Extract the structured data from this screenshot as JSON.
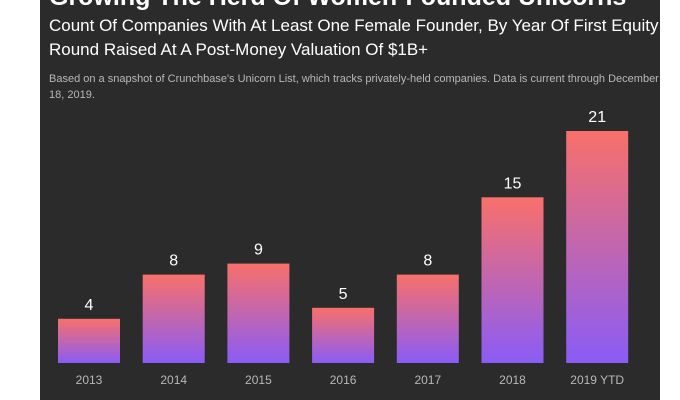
{
  "title": "Growing The Herd Of Women-Founded Unicorns",
  "subtitle": "Count Of Companies With At Least One Female Founder, By Year Of First Equity Round Raised At A Post-Money Valuation Of $1B+",
  "note": "Based on a snapshot of Crunchbase's Unicorn List, which tracks privately-held companies. Data is current through December 18, 2019.",
  "colors": {
    "background": "#2b2b2b",
    "bar_top": "#f8706a",
    "bar_bottom": "#8a5cf6",
    "text": "#ffffff",
    "muted": "#b8b8b8"
  },
  "chart_data": {
    "type": "bar",
    "title": "Growing The Herd Of Women-Founded Unicorns",
    "categories": [
      "2013",
      "2014",
      "2015",
      "2016",
      "2017",
      "2018",
      "2019 YTD"
    ],
    "values": [
      4,
      8,
      9,
      5,
      8,
      15,
      21
    ],
    "ylim": [
      0,
      21
    ],
    "grid": false,
    "data_labels": true
  }
}
